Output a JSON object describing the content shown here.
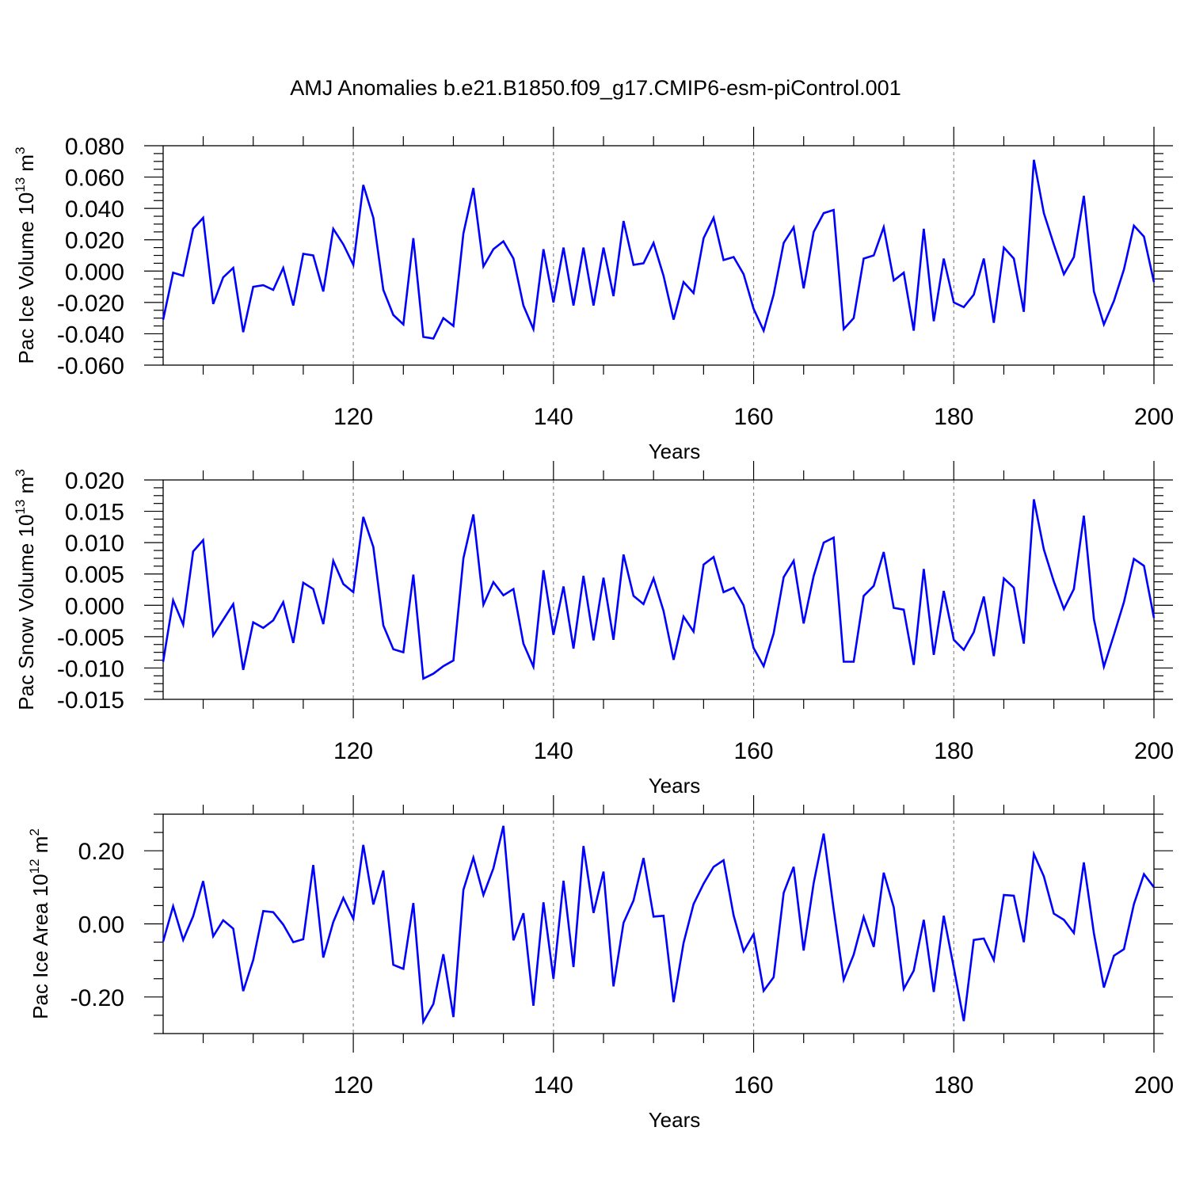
{
  "title": "AMJ Anomalies b.e21.B1850.f09_g17.CMIP6-esm-piControl.001",
  "colors": {
    "line": "#0000ff",
    "axis": "#000000",
    "grid": "#888888"
  },
  "chart_data": [
    {
      "type": "line",
      "ylabel_main": "Pac Ice Volume 10",
      "ylabel_exp": "13",
      "ylabel_unit": " m",
      "ylabel_unit_exp": "3",
      "xlabel": "Years",
      "xlim": [
        101,
        200
      ],
      "ylim": [
        -0.06,
        0.08
      ],
      "yticks": [
        -0.06,
        -0.04,
        -0.02,
        0.0,
        0.02,
        0.04,
        0.06,
        0.08
      ],
      "ytick_labels": [
        "-0.060",
        "-0.040",
        "-0.020",
        "0.000",
        "0.020",
        "0.040",
        "0.060",
        "0.080"
      ],
      "yminor_step": 0.005,
      "xticks": [
        120,
        140,
        160,
        180,
        200
      ],
      "xtick_labels": [
        "120",
        "140",
        "160",
        "180",
        "200"
      ],
      "x_start": 101,
      "values": [
        -0.031,
        -0.001,
        -0.003,
        0.027,
        0.034,
        -0.021,
        -0.004,
        0.002,
        -0.039,
        -0.01,
        -0.009,
        -0.012,
        0.002,
        -0.022,
        0.011,
        0.01,
        -0.013,
        0.027,
        0.017,
        0.004,
        0.055,
        0.034,
        -0.012,
        -0.028,
        -0.034,
        0.021,
        -0.042,
        -0.043,
        -0.03,
        -0.035,
        0.024,
        0.053,
        0.003,
        0.014,
        0.019,
        0.008,
        -0.022,
        -0.037,
        0.014,
        -0.02,
        0.015,
        -0.022,
        0.015,
        -0.022,
        0.015,
        -0.016,
        0.032,
        0.004,
        0.005,
        0.018,
        -0.003,
        -0.031,
        -0.007,
        -0.014,
        0.021,
        0.034,
        0.007,
        0.009,
        -0.002,
        -0.024,
        -0.038,
        -0.015,
        0.018,
        0.028,
        -0.011,
        0.025,
        0.037,
        0.039,
        -0.037,
        -0.03,
        0.008,
        0.01,
        0.028,
        -0.006,
        -0.001,
        -0.038,
        0.027,
        -0.032,
        0.008,
        -0.02,
        -0.023,
        -0.015,
        0.008,
        -0.033,
        0.015,
        0.008,
        -0.026,
        0.071,
        0.037,
        0.017,
        -0.002,
        0.009,
        0.048,
        -0.013,
        -0.034,
        -0.019,
        0.001,
        0.029,
        0.022,
        -0.007
      ]
    },
    {
      "type": "line",
      "ylabel_main": "Pac Snow Volume 10",
      "ylabel_exp": "13",
      "ylabel_unit": " m",
      "ylabel_unit_exp": "3",
      "xlabel": "Years",
      "xlim": [
        101,
        200
      ],
      "ylim": [
        -0.015,
        0.02
      ],
      "yticks": [
        -0.015,
        -0.01,
        -0.005,
        0.0,
        0.005,
        0.01,
        0.015,
        0.02
      ],
      "ytick_labels": [
        "-0.015",
        "-0.010",
        "-0.005",
        "0.000",
        "0.005",
        "0.010",
        "0.015",
        "0.020"
      ],
      "yminor_step": 0.00125,
      "xticks": [
        120,
        140,
        160,
        180,
        200
      ],
      "xtick_labels": [
        "120",
        "140",
        "160",
        "180",
        "200"
      ],
      "x_start": 101,
      "values": [
        -0.009,
        0.0008,
        -0.0031,
        0.0086,
        0.0104,
        -0.0048,
        -0.0023,
        0.0002,
        -0.0103,
        -0.0027,
        -0.0036,
        -0.0024,
        0.0005,
        -0.006,
        0.0036,
        0.0026,
        -0.003,
        0.0071,
        0.0034,
        0.0021,
        0.0141,
        0.0093,
        -0.0032,
        -0.007,
        -0.0075,
        0.0049,
        -0.0117,
        -0.0109,
        -0.0097,
        -0.0088,
        0.0075,
        0.0145,
        0.0001,
        0.0037,
        0.0016,
        0.0026,
        -0.0061,
        -0.0098,
        0.0056,
        -0.0047,
        0.003,
        -0.0069,
        0.0047,
        -0.0056,
        0.0044,
        -0.0055,
        0.0081,
        0.0015,
        0.0002,
        0.0043,
        -0.0009,
        -0.0087,
        -0.0018,
        -0.0042,
        0.0065,
        0.0077,
        0.0021,
        0.0028,
        0.0,
        -0.0068,
        -0.0097,
        -0.0045,
        0.0045,
        0.0071,
        -0.0029,
        0.0047,
        0.01,
        0.0108,
        -0.009,
        -0.009,
        0.0015,
        0.0031,
        0.0085,
        -0.0004,
        -0.0007,
        -0.0095,
        0.0058,
        -0.0079,
        0.0023,
        -0.0055,
        -0.0071,
        -0.0043,
        0.0014,
        -0.0081,
        0.0043,
        0.0028,
        -0.0061,
        0.0169,
        0.0089,
        0.0038,
        -0.0006,
        0.0026,
        0.0143,
        -0.0022,
        -0.0098,
        -0.0047,
        0.0005,
        0.0074,
        0.0063,
        -0.002
      ]
    },
    {
      "type": "line",
      "ylabel_main": "Pac Ice Area 10",
      "ylabel_exp": "12",
      "ylabel_unit": " m",
      "ylabel_unit_exp": "2",
      "xlabel": "Years",
      "xlim": [
        101,
        200
      ],
      "ylim": [
        -0.3,
        0.3
      ],
      "yticks": [
        -0.2,
        0.0,
        0.2
      ],
      "ytick_labels": [
        "-0.20",
        "0.00",
        "0.20"
      ],
      "yminor_step": 0.05,
      "xticks": [
        120,
        140,
        160,
        180,
        200
      ],
      "xtick_labels": [
        "120",
        "140",
        "160",
        "180",
        "200"
      ],
      "x_start": 101,
      "values": [
        -0.048,
        0.048,
        -0.044,
        0.021,
        0.117,
        -0.034,
        0.01,
        -0.013,
        -0.184,
        -0.099,
        0.035,
        0.032,
        -0.002,
        -0.05,
        -0.042,
        0.161,
        -0.092,
        0.005,
        0.071,
        0.014,
        0.216,
        0.053,
        0.146,
        -0.112,
        -0.123,
        0.057,
        -0.268,
        -0.219,
        -0.083,
        -0.255,
        0.093,
        0.181,
        0.079,
        0.152,
        0.268,
        -0.045,
        0.029,
        -0.224,
        0.059,
        -0.15,
        0.118,
        -0.118,
        0.213,
        0.03,
        0.143,
        -0.171,
        0.003,
        0.064,
        0.18,
        0.02,
        0.022,
        -0.214,
        -0.052,
        0.054,
        0.11,
        0.156,
        0.174,
        0.023,
        -0.075,
        -0.028,
        -0.183,
        -0.146,
        0.085,
        0.156,
        -0.073,
        0.112,
        0.247,
        0.04,
        -0.153,
        -0.084,
        0.019,
        -0.063,
        0.14,
        0.045,
        -0.178,
        -0.128,
        0.011,
        -0.186,
        0.022,
        -0.12,
        -0.266,
        -0.044,
        -0.04,
        -0.099,
        0.079,
        0.077,
        -0.05,
        0.191,
        0.13,
        0.028,
        0.011,
        -0.025,
        0.168,
        -0.026,
        -0.174,
        -0.087,
        -0.069,
        0.054,
        0.136,
        0.1
      ]
    }
  ]
}
